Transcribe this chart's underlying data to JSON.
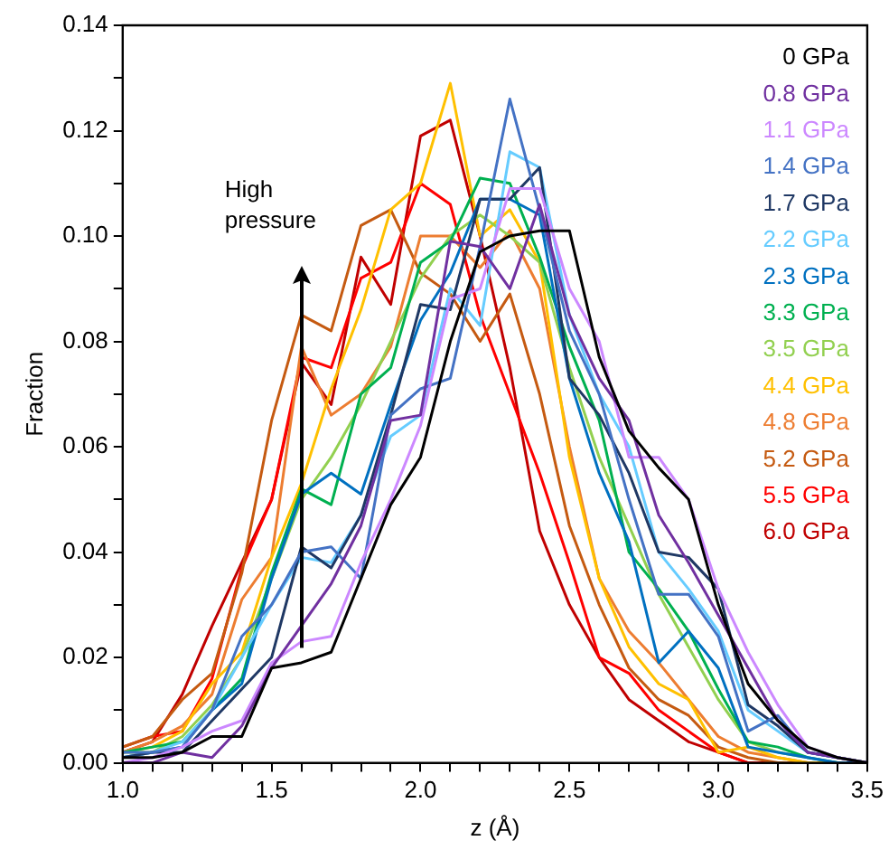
{
  "chart_data": {
    "type": "line",
    "xlabel": "z (Å)",
    "ylabel": "Fraction",
    "x": [
      1.0,
      1.1,
      1.2,
      1.3,
      1.4,
      1.5,
      1.6,
      1.7,
      1.8,
      1.9,
      2.0,
      2.1,
      2.2,
      2.3,
      2.4,
      2.5,
      2.6,
      2.7,
      2.8,
      2.9,
      3.0,
      3.1,
      3.2,
      3.3,
      3.4,
      3.5
    ],
    "xlim": [
      1.0,
      3.5
    ],
    "xticks": [
      {
        "value": 1.0,
        "label": "1.0"
      },
      {
        "value": 1.1,
        "label": null
      },
      {
        "value": 1.2,
        "label": null
      },
      {
        "value": 1.3,
        "label": null
      },
      {
        "value": 1.4,
        "label": null
      },
      {
        "value": 1.5,
        "label": "1.5"
      },
      {
        "value": 1.6,
        "label": null
      },
      {
        "value": 1.7,
        "label": null
      },
      {
        "value": 1.8,
        "label": null
      },
      {
        "value": 1.9,
        "label": null
      },
      {
        "value": 2.0,
        "label": "2.0"
      },
      {
        "value": 2.1,
        "label": null
      },
      {
        "value": 2.2,
        "label": null
      },
      {
        "value": 2.3,
        "label": null
      },
      {
        "value": 2.4,
        "label": null
      },
      {
        "value": 2.5,
        "label": "2.5"
      },
      {
        "value": 2.6,
        "label": null
      },
      {
        "value": 2.7,
        "label": null
      },
      {
        "value": 2.8,
        "label": null
      },
      {
        "value": 2.9,
        "label": null
      },
      {
        "value": 3.0,
        "label": "3.0"
      },
      {
        "value": 3.1,
        "label": null
      },
      {
        "value": 3.2,
        "label": null
      },
      {
        "value": 3.3,
        "label": null
      },
      {
        "value": 3.4,
        "label": null
      },
      {
        "value": 3.5,
        "label": "3.5"
      }
    ],
    "ylim": [
      0,
      0.14
    ],
    "yticks": [
      {
        "value": 0,
        "label": "0.00"
      },
      {
        "value": 0.01,
        "label": null
      },
      {
        "value": 0.02,
        "label": "0.02"
      },
      {
        "value": 0.03,
        "label": null
      },
      {
        "value": 0.04,
        "label": "0.04"
      },
      {
        "value": 0.05,
        "label": null
      },
      {
        "value": 0.06,
        "label": "0.06"
      },
      {
        "value": 0.07,
        "label": null
      },
      {
        "value": 0.08,
        "label": "0.08"
      },
      {
        "value": 0.09,
        "label": null
      },
      {
        "value": 0.1,
        "label": "0.10"
      },
      {
        "value": 0.11,
        "label": null
      },
      {
        "value": 0.12,
        "label": "0.12"
      },
      {
        "value": 0.13,
        "label": null
      },
      {
        "value": 0.14,
        "label": "0.14"
      }
    ],
    "grid": false,
    "legend": "top right",
    "marker": "none",
    "line_style": "solid",
    "annotations": [
      "High pressure"
    ],
    "series": [
      {
        "name": "0 GPa",
        "color": "#000000",
        "values": [
          0.001,
          0.001,
          0.002,
          0.005,
          0.005,
          0.018,
          0.019,
          0.021,
          0.035,
          0.049,
          0.058,
          0.08,
          0.097,
          0.1,
          0.101,
          0.101,
          0.077,
          0.063,
          0.056,
          0.05,
          0.03,
          0.015,
          0.008,
          0.003,
          0.001,
          0
        ]
      },
      {
        "name": "0.8 GPa",
        "color": "#7030a0",
        "values": [
          0,
          0,
          0.002,
          0.001,
          0.007,
          0.018,
          0.026,
          0.034,
          0.045,
          0.065,
          0.066,
          0.099,
          0.098,
          0.09,
          0.106,
          0.085,
          0.073,
          0.065,
          0.047,
          0.038,
          0.028,
          0.018,
          0.008,
          0.002,
          0.001,
          0
        ]
      },
      {
        "name": "1.1 GPa",
        "color": "#cc88ff",
        "values": [
          0,
          0.001,
          0.003,
          0.006,
          0.008,
          0.019,
          0.023,
          0.024,
          0.038,
          0.05,
          0.064,
          0.088,
          0.09,
          0.109,
          0.109,
          0.09,
          0.08,
          0.058,
          0.058,
          0.05,
          0.033,
          0.021,
          0.011,
          0.003,
          0.001,
          0
        ]
      },
      {
        "name": "1.4 GPa",
        "color": "#4472c4",
        "values": [
          0.002,
          0.002,
          0.003,
          0.01,
          0.024,
          0.03,
          0.04,
          0.041,
          0.035,
          0.066,
          0.071,
          0.073,
          0.098,
          0.126,
          0.105,
          0.082,
          0.07,
          0.05,
          0.032,
          0.032,
          0.024,
          0.006,
          0.009,
          0.002,
          0.001,
          0
        ]
      },
      {
        "name": "1.7 GPa",
        "color": "#1f3864",
        "values": [
          0.001,
          0.002,
          0.002,
          0.008,
          0.014,
          0.02,
          0.041,
          0.037,
          0.047,
          0.066,
          0.087,
          0.086,
          0.107,
          0.107,
          0.113,
          0.073,
          0.066,
          0.055,
          0.04,
          0.039,
          0.033,
          0.011,
          0.007,
          0.002,
          0.001,
          0
        ]
      },
      {
        "name": "2.2 GPa",
        "color": "#66ccff",
        "values": [
          0.001,
          0.002,
          0.004,
          0.01,
          0.02,
          0.03,
          0.039,
          0.038,
          0.047,
          0.062,
          0.066,
          0.09,
          0.083,
          0.116,
          0.113,
          0.085,
          0.07,
          0.06,
          0.04,
          0.033,
          0.025,
          0.01,
          0.006,
          0.002,
          0.001,
          0
        ]
      },
      {
        "name": "2.3 GPa",
        "color": "#0070c0",
        "values": [
          0.001,
          0.002,
          0.003,
          0.01,
          0.015,
          0.035,
          0.051,
          0.055,
          0.051,
          0.068,
          0.084,
          0.093,
          0.107,
          0.107,
          0.104,
          0.073,
          0.055,
          0.042,
          0.019,
          0.025,
          0.018,
          0.003,
          0.002,
          0.001,
          0,
          0
        ]
      },
      {
        "name": "3.3 GPa",
        "color": "#00b050",
        "values": [
          0.002,
          0.003,
          0.004,
          0.01,
          0.016,
          0.036,
          0.052,
          0.049,
          0.07,
          0.075,
          0.095,
          0.099,
          0.111,
          0.11,
          0.096,
          0.079,
          0.065,
          0.04,
          0.033,
          0.025,
          0.014,
          0.004,
          0.003,
          0.001,
          0,
          0
        ]
      },
      {
        "name": "3.5 GPa",
        "color": "#92d050",
        "values": [
          0.002,
          0.002,
          0.005,
          0.011,
          0.02,
          0.035,
          0.05,
          0.058,
          0.068,
          0.08,
          0.092,
          0.1,
          0.104,
          0.1,
          0.095,
          0.075,
          0.058,
          0.045,
          0.032,
          0.022,
          0.012,
          0.004,
          0.002,
          0.001,
          null,
          null
        ]
      },
      {
        "name": "4.4 GPa",
        "color": "#ffc000",
        "values": [
          0.002,
          0.003,
          0.006,
          0.015,
          0.021,
          0.039,
          0.053,
          0.071,
          0.086,
          0.105,
          0.11,
          0.129,
          0.1,
          0.105,
          0.095,
          0.058,
          0.035,
          0.022,
          0.015,
          0.012,
          0.002,
          0.003,
          0.001,
          0,
          0,
          0
        ]
      },
      {
        "name": "4.8 GPa",
        "color": "#ed7d31",
        "values": [
          0.002,
          0.004,
          0.007,
          0.013,
          0.031,
          0.039,
          0.079,
          0.066,
          0.07,
          0.079,
          0.1,
          0.1,
          0.094,
          0.101,
          0.09,
          0.06,
          0.035,
          0.025,
          0.019,
          0.012,
          0.005,
          0.002,
          0.001,
          0,
          0,
          0
        ]
      },
      {
        "name": "5.2 GPa",
        "color": "#c55a11",
        "values": [
          0.003,
          0.005,
          0.012,
          0.017,
          0.036,
          0.065,
          0.085,
          0.082,
          0.102,
          0.105,
          0.093,
          0.089,
          0.08,
          0.089,
          0.07,
          0.045,
          0.03,
          0.018,
          0.012,
          0.009,
          0.003,
          0.001,
          0,
          0,
          0,
          0
        ]
      },
      {
        "name": "5.5 GPa",
        "color": "#ff0000",
        "values": [
          0.003,
          0.005,
          0.006,
          0.016,
          0.037,
          0.05,
          0.077,
          0.075,
          0.092,
          0.095,
          0.11,
          0.106,
          0.085,
          0.07,
          0.055,
          0.038,
          0.02,
          0.017,
          0.01,
          0.006,
          0.002,
          0,
          0,
          0,
          null,
          null
        ]
      },
      {
        "name": "6.0 GPa",
        "color": "#c00000",
        "values": [
          0.002,
          0.004,
          0.013,
          0.026,
          0.038,
          0.05,
          0.076,
          0.068,
          0.096,
          0.087,
          0.119,
          0.122,
          0.1,
          0.075,
          0.044,
          0.03,
          0.02,
          0.012,
          0.008,
          0.004,
          0.002,
          0,
          0,
          0,
          null,
          null
        ]
      }
    ]
  }
}
